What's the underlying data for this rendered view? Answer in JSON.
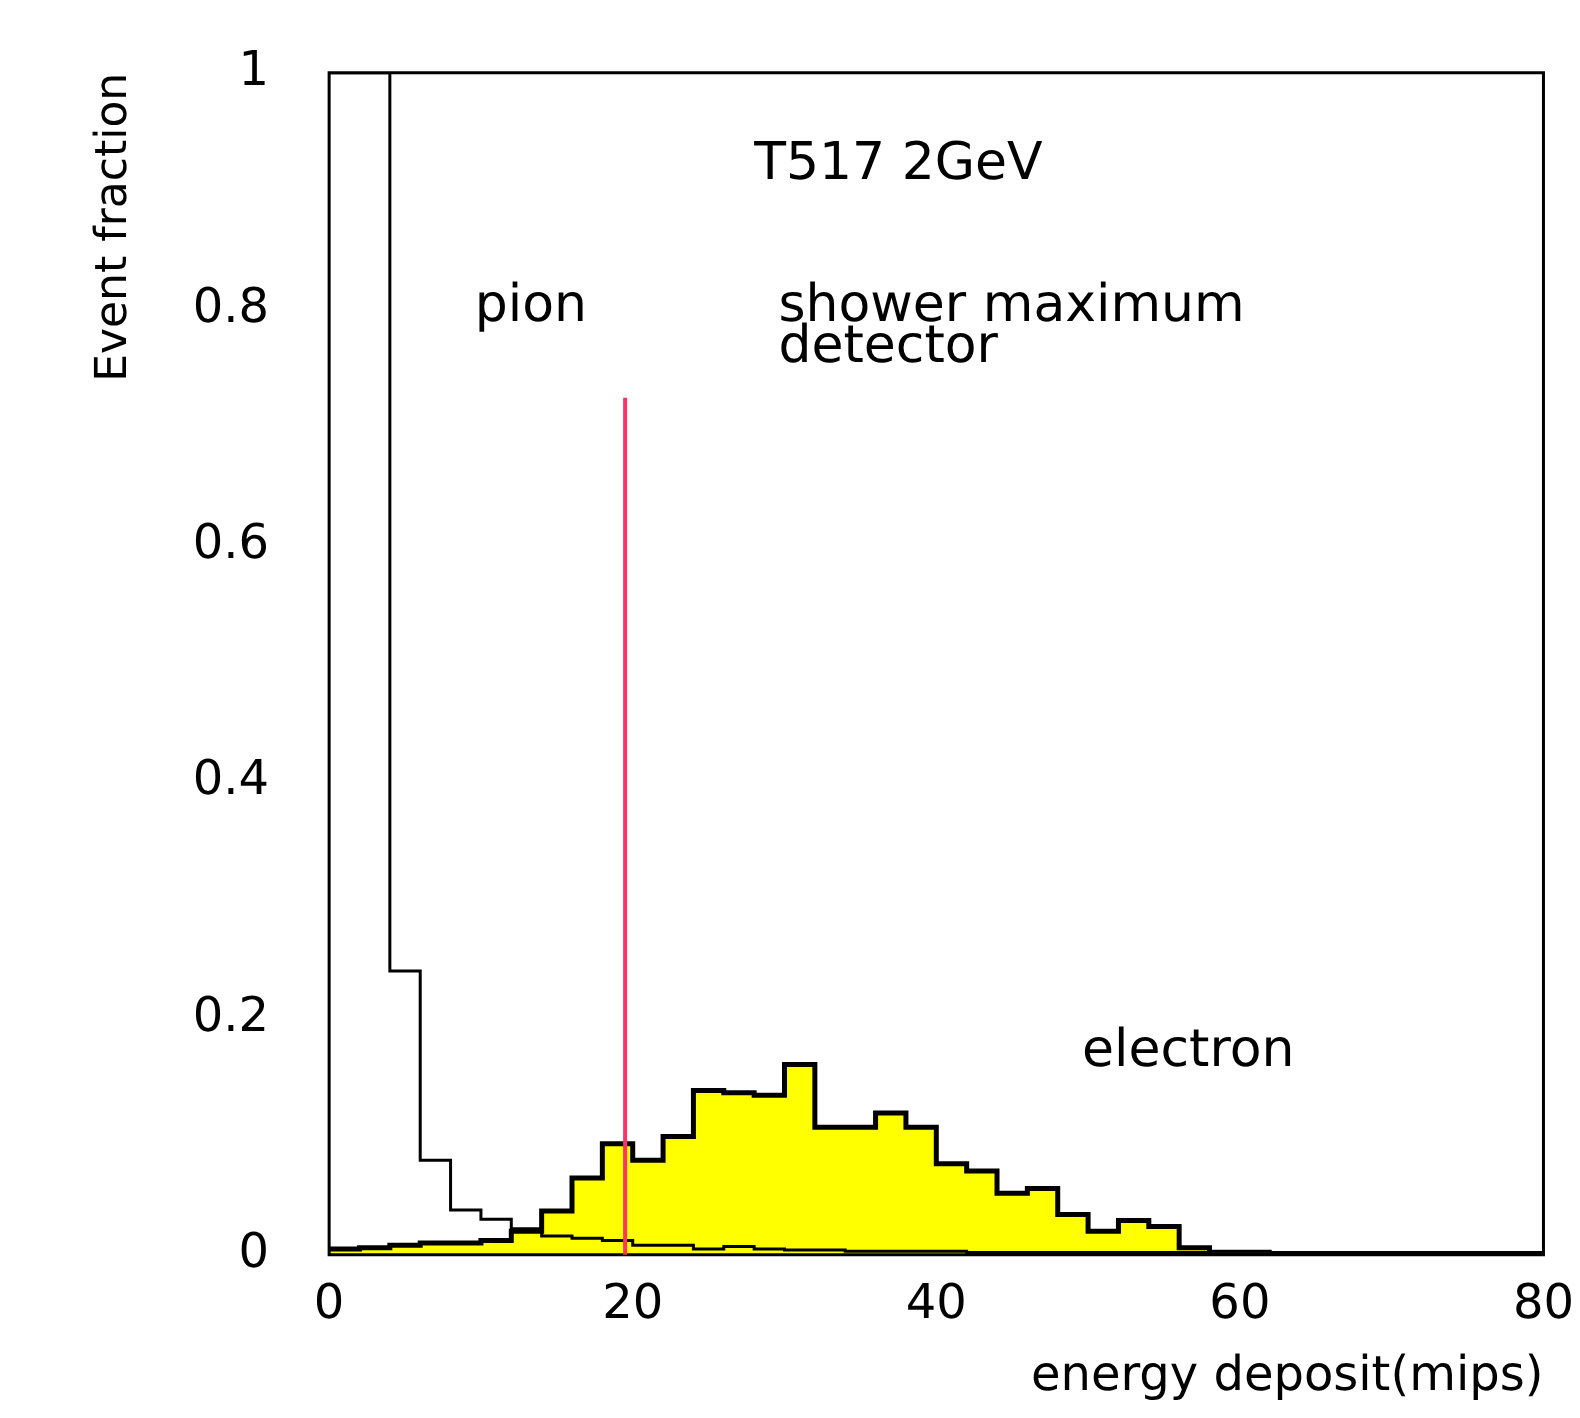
{
  "chart_data": {
    "type": "histogram",
    "xlabel": "energy deposit(mips)",
    "ylabel": "Event fraction",
    "annotations": [
      "T517 2GeV",
      "shower maximum detector"
    ],
    "bins": [
      0,
      2,
      4,
      6,
      8,
      10,
      12,
      14,
      16,
      18,
      20,
      22,
      24,
      26,
      28,
      30,
      32,
      34,
      36,
      38,
      40,
      42,
      44,
      46,
      48,
      50,
      52,
      54,
      56,
      58,
      60,
      62,
      64,
      66,
      68,
      70,
      72,
      74,
      76,
      78,
      80
    ],
    "series": [
      {
        "name": "pion",
        "color": "#000000",
        "values": [
          1,
          1,
          0.24,
          0.08,
          0.038,
          0.03,
          0.022,
          0.016,
          0.014,
          0.012,
          0.008,
          0.008,
          0.005,
          0.007,
          0.005,
          0.004,
          0.004,
          0.003,
          0.003,
          0.003,
          0.003,
          0.002,
          0.002,
          0.002,
          0.002,
          0.002,
          0.002,
          0.002,
          0.002,
          0.003,
          0.003,
          0.002,
          0.002,
          0.002,
          0.002,
          0.002,
          0.002,
          0.002,
          0.002,
          0.002
        ]
      },
      {
        "name": "electron",
        "color": "#ffff00",
        "values": [
          0.005,
          0.006,
          0.008,
          0.01,
          0.01,
          0.012,
          0.02,
          0.037,
          0.065,
          0.094,
          0.08,
          0.1,
          0.139,
          0.137,
          0.135,
          0.161,
          0.108,
          0.108,
          0.12,
          0.108,
          0.077,
          0.071,
          0.052,
          0.056,
          0.034,
          0.02,
          0.029,
          0.024,
          0.006,
          0,
          0,
          0,
          0,
          0,
          0,
          0,
          0,
          0,
          0,
          0
        ]
      }
    ],
    "xlim": [
      0,
      80
    ],
    "xticks": [
      0,
      20,
      40,
      60,
      80
    ],
    "ylim": [
      0,
      1
    ],
    "yticks": [
      0,
      0.2,
      0.4,
      0.6,
      0.8,
      1
    ],
    "ref_lines": [
      {
        "axis": "x",
        "value": 19.5,
        "color": "#ff3366"
      }
    ],
    "grid": false,
    "legend": false
  }
}
